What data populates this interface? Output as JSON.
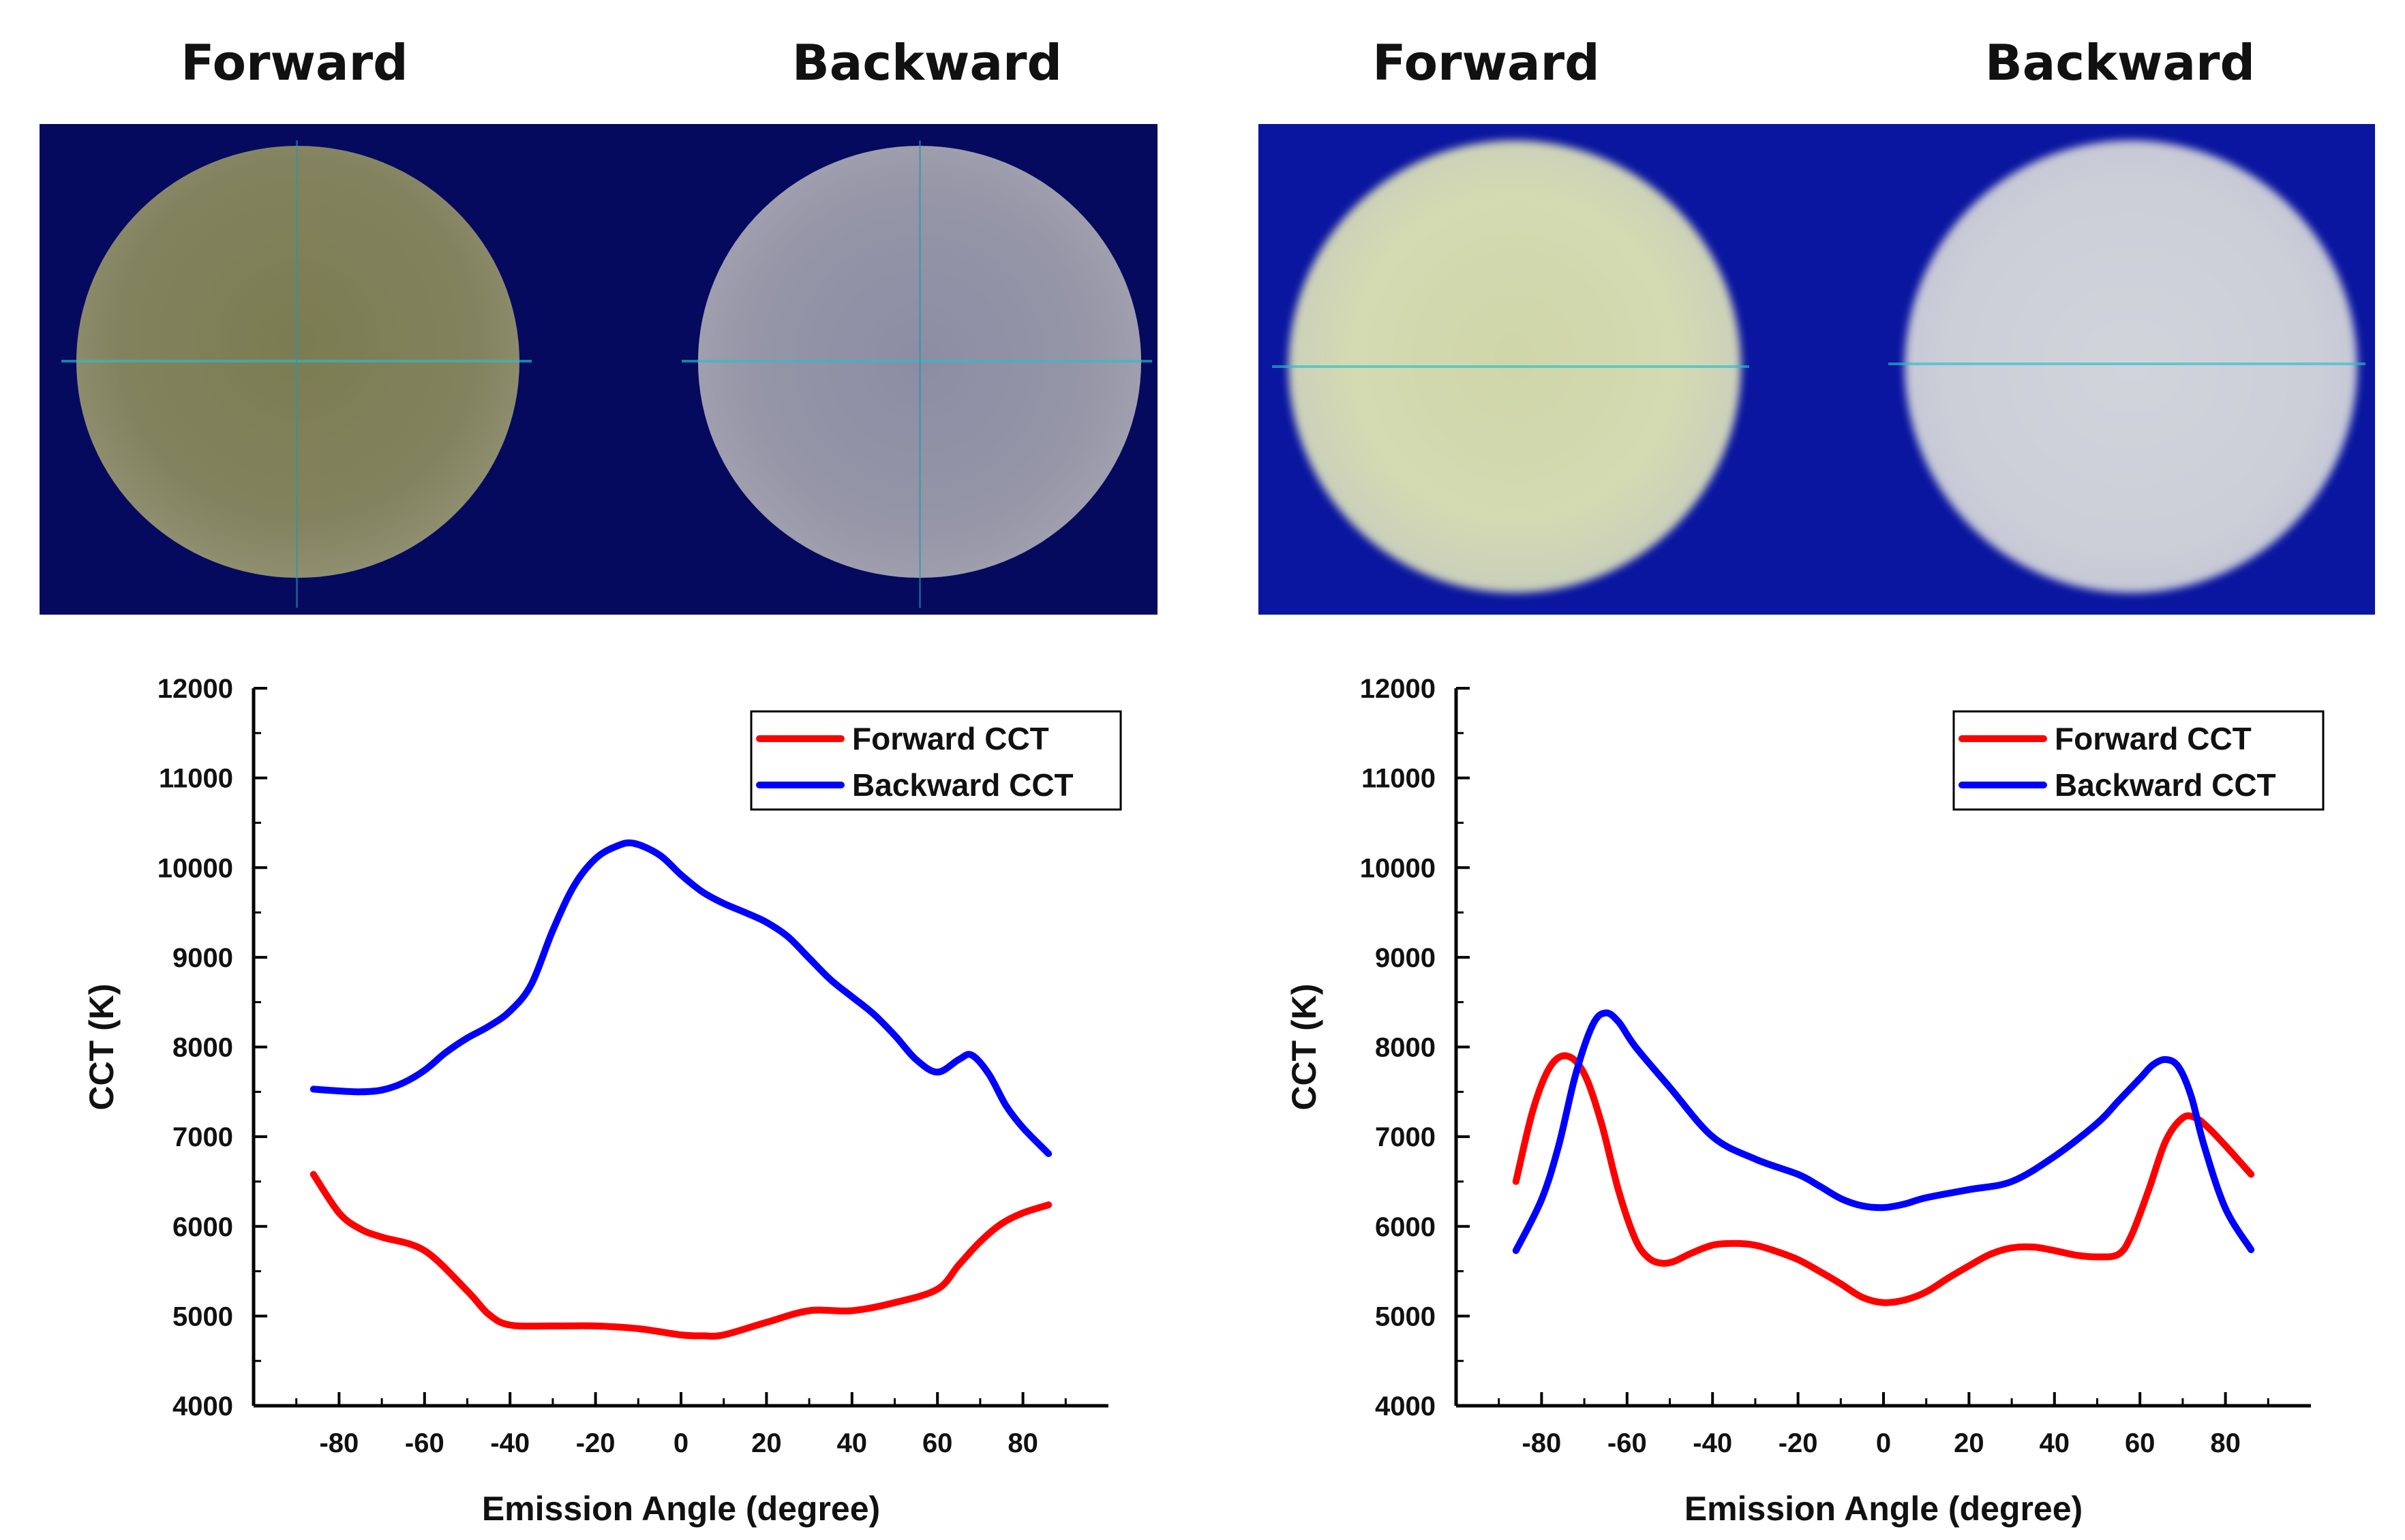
{
  "photo_labels": {
    "left_forward": "Forward",
    "left_backward": "Backward",
    "right_forward": "Forward",
    "right_backward": "Backward"
  },
  "colors": {
    "forward": "#ff0000",
    "backward": "#0000ff",
    "photo_background_left": "#060a5e",
    "photo_background_right": "#0a16a0"
  },
  "chart_data": [
    {
      "type": "line",
      "xlabel": "Emission Angle (degree)",
      "ylabel": "CCT (K)",
      "xlim": [
        -100,
        100
      ],
      "ylim": [
        4000,
        12000
      ],
      "xticks": [
        -80,
        -60,
        -40,
        -20,
        0,
        20,
        40,
        60,
        80
      ],
      "yticks": [
        4000,
        5000,
        6000,
        7000,
        8000,
        9000,
        10000,
        11000,
        12000
      ],
      "legend_position": "top-right",
      "grid": false,
      "series": [
        {
          "name": "Forward CCT",
          "color": "#ff0000",
          "x": [
            -86,
            -80,
            -75,
            -70,
            -60,
            -50,
            -45,
            -40,
            -30,
            -20,
            -10,
            0,
            5,
            10,
            20,
            30,
            40,
            50,
            60,
            65,
            70,
            75,
            80,
            86
          ],
          "y": [
            6580,
            6150,
            5970,
            5880,
            5730,
            5280,
            5020,
            4900,
            4890,
            4890,
            4860,
            4790,
            4780,
            4790,
            4930,
            5060,
            5060,
            5150,
            5300,
            5570,
            5830,
            6030,
            6150,
            6240
          ]
        },
        {
          "name": "Backward CCT",
          "color": "#0000ff",
          "x": [
            -86,
            -80,
            -75,
            -70,
            -65,
            -60,
            -55,
            -50,
            -45,
            -40,
            -35,
            -30,
            -25,
            -20,
            -15,
            -11,
            -5,
            0,
            5,
            10,
            15,
            20,
            25,
            30,
            35,
            40,
            45,
            50,
            55,
            60,
            65,
            68,
            72,
            76,
            80,
            86
          ],
          "y": [
            7530,
            7510,
            7500,
            7520,
            7600,
            7740,
            7940,
            8100,
            8230,
            8400,
            8700,
            9300,
            9800,
            10100,
            10240,
            10270,
            10140,
            9920,
            9730,
            9600,
            9500,
            9390,
            9230,
            8990,
            8750,
            8560,
            8370,
            8130,
            7860,
            7720,
            7860,
            7910,
            7700,
            7350,
            7100,
            6810
          ]
        }
      ]
    },
    {
      "type": "line",
      "xlabel": "Emission Angle (degree)",
      "ylabel": "CCT (K)",
      "xlim": [
        -100,
        100
      ],
      "ylim": [
        4000,
        12000
      ],
      "xticks": [
        -80,
        -60,
        -40,
        -20,
        0,
        20,
        40,
        60,
        80
      ],
      "yticks": [
        4000,
        5000,
        6000,
        7000,
        8000,
        9000,
        10000,
        11000,
        12000
      ],
      "legend_position": "top-right",
      "grid": false,
      "series": [
        {
          "name": "Forward CCT",
          "color": "#ff0000",
          "x": [
            -86,
            -82,
            -78,
            -74,
            -70,
            -66,
            -62,
            -58,
            -55,
            -52,
            -49,
            -45,
            -40,
            -35,
            -30,
            -25,
            -20,
            -15,
            -10,
            -5,
            0,
            5,
            10,
            15,
            20,
            25,
            30,
            35,
            40,
            45,
            50,
            55,
            58,
            62,
            66,
            70,
            73,
            76,
            80,
            86
          ],
          "y": [
            6500,
            7300,
            7780,
            7900,
            7700,
            7150,
            6400,
            5850,
            5650,
            5590,
            5610,
            5700,
            5790,
            5810,
            5790,
            5720,
            5630,
            5500,
            5360,
            5210,
            5150,
            5180,
            5270,
            5420,
            5560,
            5690,
            5760,
            5770,
            5730,
            5680,
            5660,
            5690,
            5900,
            6400,
            6950,
            7210,
            7210,
            7100,
            6900,
            6580
          ]
        },
        {
          "name": "Backward CCT",
          "color": "#0000ff",
          "x": [
            -86,
            -80,
            -76,
            -72,
            -68,
            -65,
            -62,
            -58,
            -50,
            -40,
            -30,
            -20,
            -15,
            -10,
            -5,
            0,
            5,
            10,
            20,
            30,
            40,
            50,
            55,
            60,
            63,
            66,
            69,
            72,
            75,
            80,
            86
          ],
          "y": [
            5730,
            6300,
            6900,
            7700,
            8250,
            8380,
            8280,
            8000,
            7550,
            7000,
            6750,
            6580,
            6450,
            6310,
            6230,
            6210,
            6250,
            6320,
            6410,
            6500,
            6780,
            7150,
            7400,
            7650,
            7800,
            7860,
            7780,
            7450,
            6900,
            6200,
            5740
          ]
        }
      ]
    }
  ]
}
